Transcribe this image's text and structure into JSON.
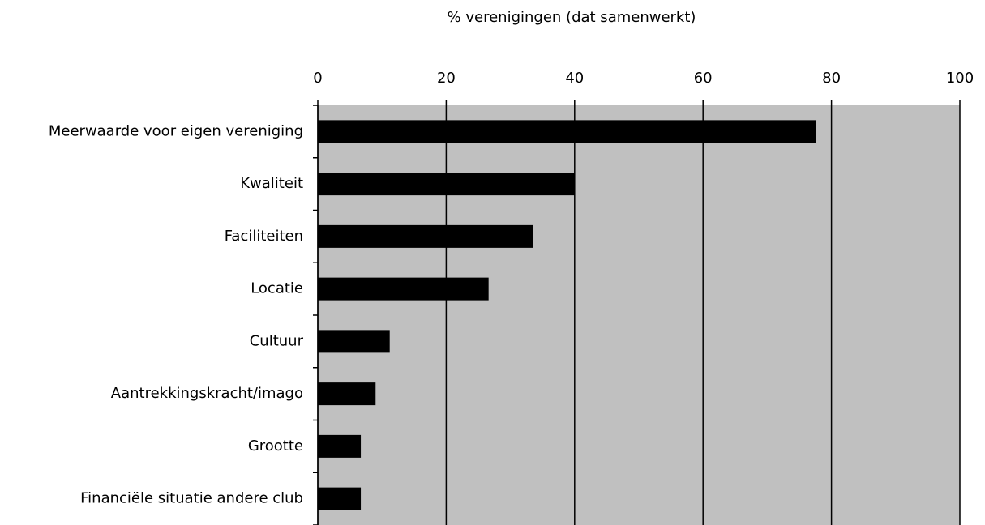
{
  "chart_data": {
    "type": "barh",
    "xlabel": "% verenigingen (dat samenwerkt)",
    "categories": [
      "Meerwaarde voor eigen vereniging",
      "Kwaliteit",
      "Faciliteiten",
      "Locatie",
      "Cultuur",
      "Aantrekkingskracht/imago",
      "Grootte",
      "Financiële situatie andere club"
    ],
    "values": [
      77.6,
      40.0,
      33.5,
      26.6,
      11.2,
      9.0,
      6.7,
      6.7
    ],
    "color": "#000000",
    "background": "#c0c0c0",
    "xlim": [
      0,
      100
    ],
    "xticks": [
      0,
      20,
      40,
      60,
      80,
      100
    ],
    "grid": true
  }
}
